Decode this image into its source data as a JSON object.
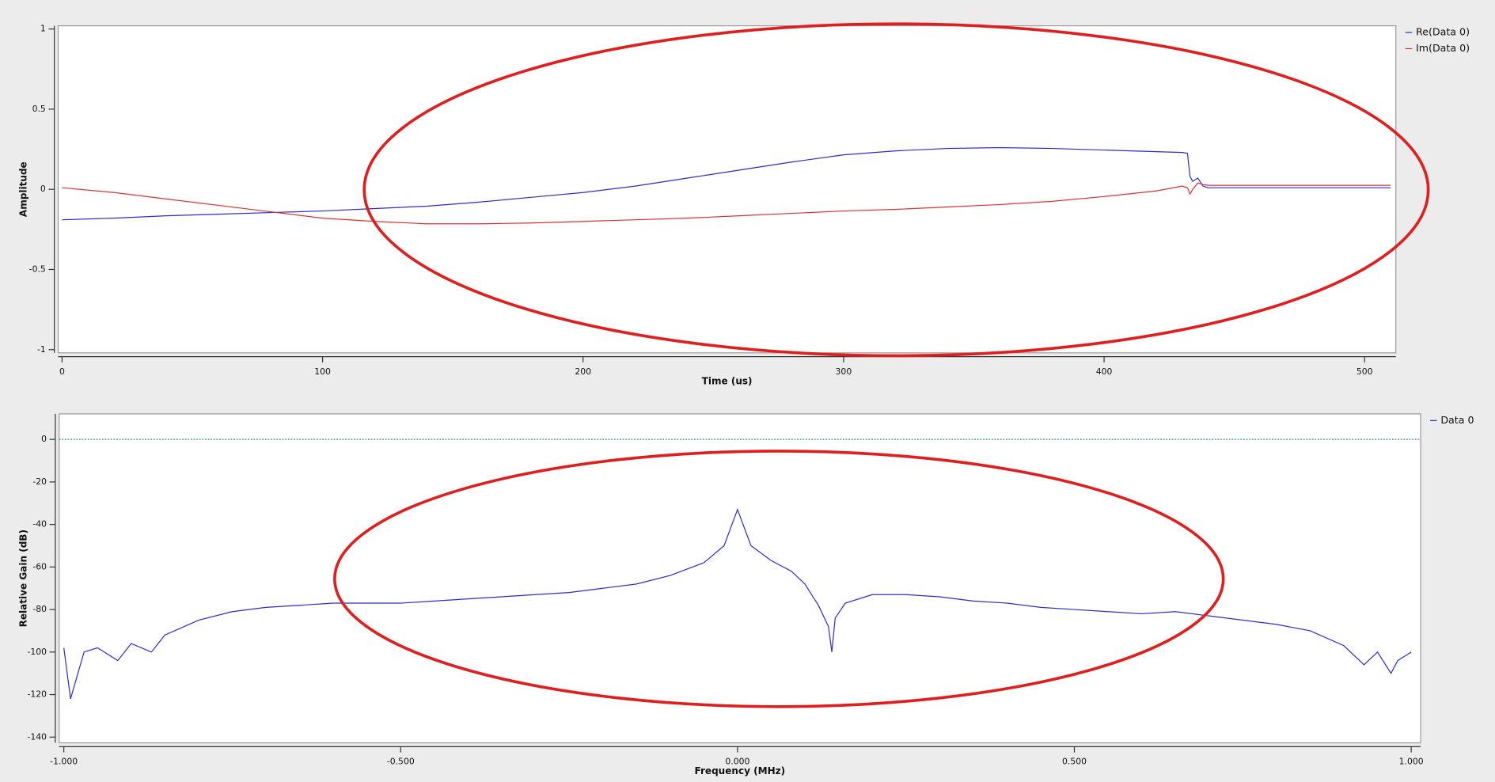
{
  "chart_data": [
    {
      "type": "line",
      "x_label": "Time (us)",
      "y_label": "Amplitude",
      "x": [
        0,
        20,
        40,
        60,
        80,
        100,
        120,
        140,
        160,
        180,
        200,
        220,
        240,
        260,
        280,
        300,
        320,
        340,
        360,
        380,
        400,
        420,
        430,
        432,
        433,
        434,
        436,
        438,
        440,
        460,
        480,
        500,
        510
      ],
      "series": [
        {
          "name": "Re(Data 0)",
          "color": "#2b2bd6",
          "values": [
            -0.19,
            -0.18,
            -0.165,
            -0.155,
            -0.145,
            -0.135,
            -0.12,
            -0.105,
            -0.08,
            -0.05,
            -0.02,
            0.02,
            0.07,
            0.12,
            0.17,
            0.215,
            0.24,
            0.255,
            0.26,
            0.255,
            0.245,
            0.235,
            0.23,
            0.225,
            0.08,
            0.05,
            0.07,
            0.02,
            0.01,
            0.01,
            0.01,
            0.01,
            0.01
          ]
        },
        {
          "name": "Im(Data 0)",
          "color": "#e03030",
          "values": [
            0.01,
            -0.02,
            -0.06,
            -0.1,
            -0.14,
            -0.18,
            -0.2,
            -0.215,
            -0.215,
            -0.21,
            -0.2,
            -0.19,
            -0.18,
            -0.165,
            -0.15,
            -0.135,
            -0.125,
            -0.11,
            -0.095,
            -0.075,
            -0.045,
            -0.01,
            0.02,
            0.01,
            -0.03,
            0.0,
            0.04,
            0.03,
            0.025,
            0.025,
            0.025,
            0.025,
            0.025
          ]
        }
      ],
      "xlim": [
        -1.5,
        512
      ],
      "ylim": [
        -1.02,
        1.02
      ],
      "xticks": [
        0,
        100,
        200,
        300,
        400,
        500
      ],
      "yticks": [
        -1,
        -0.5,
        0,
        0.5,
        1
      ],
      "legend": "outside-right"
    },
    {
      "type": "line",
      "x_label": "Frequency (MHz)",
      "y_label": "Relative Gain (dB)",
      "x": [
        -1.0,
        -0.99,
        -0.97,
        -0.95,
        -0.92,
        -0.9,
        -0.87,
        -0.85,
        -0.8,
        -0.75,
        -0.7,
        -0.65,
        -0.6,
        -0.55,
        -0.5,
        -0.45,
        -0.4,
        -0.35,
        -0.3,
        -0.25,
        -0.2,
        -0.15,
        -0.1,
        -0.05,
        -0.02,
        0,
        0.02,
        0.05,
        0.08,
        0.1,
        0.12,
        0.135,
        0.14,
        0.145,
        0.16,
        0.2,
        0.25,
        0.3,
        0.35,
        0.4,
        0.45,
        0.5,
        0.55,
        0.6,
        0.65,
        0.7,
        0.75,
        0.8,
        0.85,
        0.9,
        0.93,
        0.95,
        0.97,
        0.98,
        1.0
      ],
      "series": [
        {
          "name": "Data 0",
          "color": "#2b2bd6",
          "values": [
            -98,
            -122,
            -100,
            -98,
            -104,
            -96,
            -100,
            -92,
            -85,
            -81,
            -79,
            -78,
            -77,
            -77,
            -77,
            -76,
            -75,
            -74,
            -73,
            -72,
            -70,
            -68,
            -64,
            -58,
            -50,
            -33,
            -50,
            -57,
            -62,
            -68,
            -78,
            -88,
            -100,
            -84,
            -77,
            -73,
            -73,
            -74,
            -76,
            -77,
            -79,
            -80,
            -81,
            -82,
            -81,
            -83,
            -85,
            -87,
            -90,
            -97,
            -106,
            -100,
            -110,
            -104,
            -100
          ]
        }
      ],
      "xlim": [
        -1.007,
        1.014
      ],
      "ylim": [
        -142.7,
        12
      ],
      "xticks": [
        {
          "value": -1,
          "label": "-1.000"
        },
        {
          "value": -0.5,
          "label": "-0.500"
        },
        {
          "value": 0,
          "label": "0.000"
        },
        {
          "value": 0.5,
          "label": "0.500"
        },
        {
          "value": 1,
          "label": "1.000"
        }
      ],
      "yticks": [
        -140,
        -120,
        -100,
        -80,
        -60,
        -40,
        -20,
        0
      ],
      "hline": 0,
      "hline_color": "#2a8a8a",
      "legend": "outside-right"
    }
  ]
}
